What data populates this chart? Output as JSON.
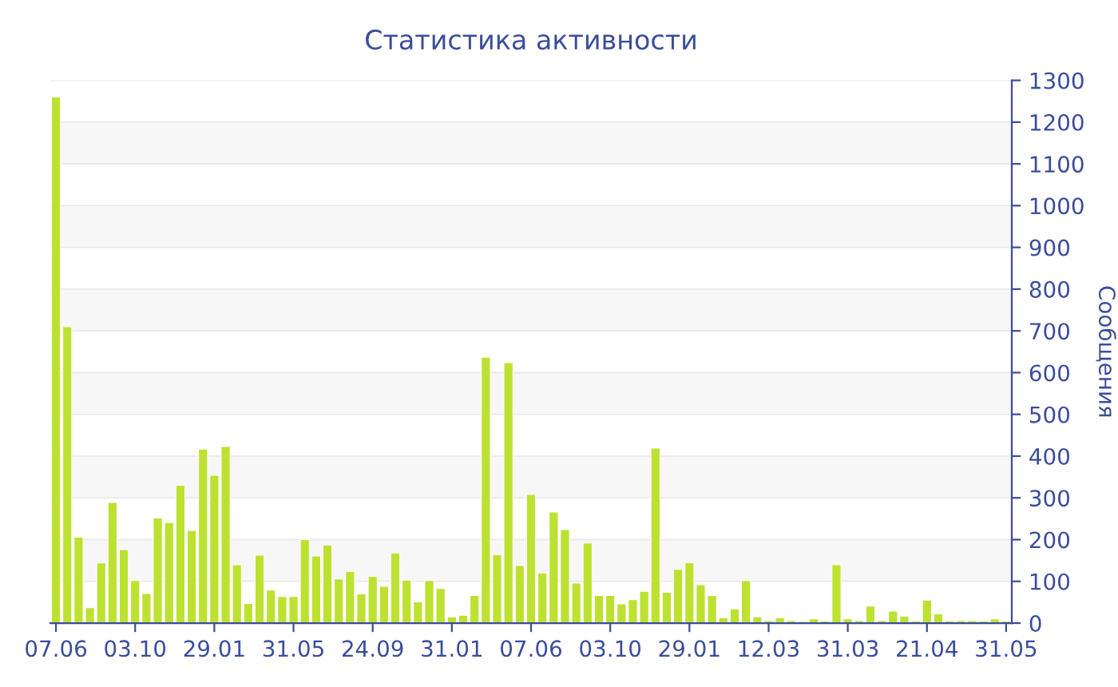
{
  "chart_data": {
    "type": "bar",
    "title": "Статистика активности",
    "ylabel": "Сообщения",
    "categories": [
      "07.06",
      null,
      null,
      null,
      null,
      null,
      null,
      "03.10",
      null,
      null,
      null,
      null,
      null,
      null,
      "29.01",
      null,
      null,
      null,
      null,
      null,
      null,
      "31.05",
      null,
      null,
      null,
      null,
      null,
      null,
      "24.09",
      null,
      null,
      null,
      null,
      null,
      null,
      "31.01",
      null,
      null,
      null,
      null,
      null,
      null,
      "07.06",
      null,
      null,
      null,
      null,
      null,
      null,
      "03.10",
      null,
      null,
      null,
      null,
      null,
      null,
      "29.01",
      null,
      null,
      null,
      null,
      null,
      null,
      "12.03",
      null,
      null,
      null,
      null,
      null,
      null,
      "31.03",
      null,
      null,
      null,
      null,
      null,
      null,
      "21.04",
      null,
      null,
      null,
      null,
      null,
      null,
      "31.05"
    ],
    "values": [
      1260,
      710,
      206,
      37,
      144,
      289,
      176,
      102,
      71,
      252,
      241,
      330,
      222,
      417,
      354,
      423,
      140,
      47,
      163,
      79,
      64,
      64,
      200,
      161,
      187,
      106,
      124,
      70,
      112,
      88,
      168,
      103,
      51,
      102,
      83,
      15,
      19,
      66,
      637,
      164,
      624,
      138,
      308,
      120,
      266,
      224,
      96,
      192,
      66,
      66,
      46,
      56,
      76,
      419,
      74,
      129,
      145,
      92,
      66,
      13,
      34,
      102,
      15,
      6,
      13,
      6,
      4,
      10,
      5,
      140,
      10,
      6,
      41,
      6,
      29,
      17,
      5,
      55,
      22,
      5,
      6,
      6,
      5,
      10,
      5
    ],
    "color": "#bde131",
    "ylim": [
      0,
      1300
    ],
    "yticks": [
      0,
      100,
      200,
      300,
      400,
      500,
      600,
      700,
      800,
      900,
      1000,
      1100,
      1200,
      1300
    ],
    "grid": "y"
  }
}
